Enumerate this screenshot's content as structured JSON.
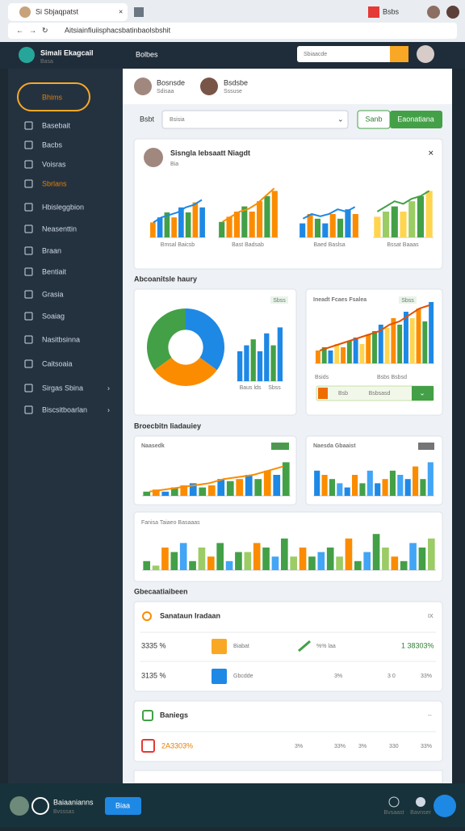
{
  "browser": {
    "tab_title": "Si Sbjaqpatst",
    "url": "Aitsiainfiuiisphacsbatinbaolsbshit",
    "ext": "Bsbs"
  },
  "header": {
    "brand": "Simali Ekagcail",
    "brand_sub": "Basa",
    "section": "Bolbes",
    "search": "Sbiaacde"
  },
  "sidebar": {
    "active": "Bhims",
    "items": [
      "Basebait",
      "Bacbs",
      "Voisras",
      "Sbrlans",
      "Hbisleggbion",
      "Neasenttin",
      "Braan",
      "Bentiait",
      "Grasia",
      "Soaiag",
      "Nasitbsinna",
      "Caitsoaia",
      "Sirgas Sbina",
      "Biscsitboarlan"
    ]
  },
  "profiles": [
    {
      "name": "Bosnsde",
      "role": "Sdisaa"
    },
    {
      "name": "Bsdsbe",
      "role": "Sssuse"
    }
  ],
  "filter": {
    "label": "Bsbt",
    "select": "Bsisia",
    "button1": "Sanb",
    "button2": "Eaonatiana"
  },
  "card1": {
    "title": "Sisngla Iebsaatt Niagdt",
    "subtitle": "Bia",
    "captions": [
      "Bmsal Baicsb",
      "Bast Badsab",
      "Baed Baslsa",
      "Bssat Baaas"
    ]
  },
  "section1": "Abcoanitsle haury",
  "donut_card": {
    "badge": "Sbss",
    "caption": "Baus lds",
    "caption2": "Sbss"
  },
  "right_card": {
    "title": "Ineadt Fcaes Fsalea",
    "badge": "Sbss",
    "label1": "Bsids",
    "label2": "Bsbs Bsbsd",
    "bar_left": "Bsb",
    "bar_mid": "Bsbsasd"
  },
  "section2": "Broecbitn Iiadauiey",
  "card_a": {
    "title": "Naasedk",
    "badge": "Bsbs"
  },
  "card_b": {
    "title": "Naesda Gbaaist",
    "badge": "Bsbs"
  },
  "card_c": {
    "title": "Fanisa Taiaeo Basaaas"
  },
  "section3": "Gbecaatiaibeen",
  "table1": {
    "title": "Sanataun Iradaan",
    "close": "IX",
    "rows": [
      [
        "3335 %",
        "Biabat",
        "%% laa",
        "1 38303%"
      ],
      [
        "3135 %",
        "Gbcdde",
        "3%",
        "3 0",
        "33%"
      ]
    ]
  },
  "table2": {
    "title": "Baniegs",
    "close": "--",
    "rows": [
      [
        "2A3303%",
        "3%",
        "33%",
        "3%",
        "330",
        "33%"
      ]
    ]
  },
  "footer": {
    "name": "Baiaanianns",
    "sub": "Bvsssas",
    "button": "Biaa",
    "icon1": "Bvsaast",
    "icon2": "Bavnser"
  },
  "charts": [
    {
      "type": "bar",
      "ylim": [
        0,
        10
      ],
      "values": [
        3,
        4,
        5,
        4,
        6,
        5,
        7,
        6
      ],
      "line": [
        3,
        4,
        4.5,
        5,
        6,
        6.5,
        7.5
      ],
      "colors": [
        "#fb8c00",
        "#1e88e5",
        "#43a047"
      ],
      "line_color": "#1e88e5"
    },
    {
      "type": "bar",
      "ylim": [
        0,
        10
      ],
      "values": [
        3,
        4,
        5,
        6,
        5,
        7,
        8,
        9
      ],
      "line": [
        3,
        4,
        5,
        5.5,
        6.5,
        8,
        9.5
      ],
      "colors": [
        "#43a047",
        "#fb8c00",
        "#fb8c00"
      ],
      "line_color": "#fb8c00"
    },
    {
      "type": "bar",
      "ylim": [
        0,
        10
      ],
      "values": [
        3,
        5,
        4,
        3,
        5,
        4,
        6,
        5
      ],
      "line": [
        4,
        5,
        4.5,
        5,
        6,
        5.5,
        6.5
      ],
      "colors": [
        "#1e88e5",
        "#fb8c00",
        "#43a047"
      ],
      "line_color": "#1e88e5"
    },
    {
      "type": "bar",
      "ylim": [
        0,
        10
      ],
      "values": [
        4,
        5,
        6,
        5,
        7,
        8,
        9
      ],
      "line": [
        5,
        6,
        7,
        6.5,
        7.5,
        8,
        9
      ],
      "colors": [
        "#ffd54f",
        "#9ccc65",
        "#43a047"
      ],
      "line_color": "#43a047"
    },
    {
      "type": "pie",
      "values": [
        35,
        30,
        35
      ],
      "colors": [
        "#1e88e5",
        "#fb8c00",
        "#43a047"
      ]
    },
    {
      "type": "bar",
      "ylim": [
        0,
        10
      ],
      "values": [
        5,
        6,
        7,
        5,
        8,
        6,
        9
      ],
      "colors": [
        "#1e88e5",
        "#1e88e5",
        "#43a047"
      ]
    },
    {
      "type": "bar",
      "ylim": [
        0,
        10
      ],
      "values": [
        2,
        2.5,
        2,
        3,
        2.5,
        3.5,
        4,
        3,
        4.5,
        5,
        6,
        5.5,
        7,
        6,
        8,
        7,
        8.5,
        6.5,
        9.5
      ],
      "line": [
        2,
        2.5,
        3,
        3.5,
        4,
        4.5,
        5,
        6,
        6.5,
        7.5,
        8.5,
        9
      ],
      "colors": [
        "#fb8c00",
        "#43a047",
        "#1e88e5",
        "#ffd54f"
      ],
      "line_color": "#e65100"
    },
    {
      "type": "bar",
      "ylim": [
        0,
        10
      ],
      "values": [
        1,
        1.5,
        1,
        2,
        2.5,
        3,
        2,
        2.5,
        4,
        3.5,
        4,
        5,
        4,
        6,
        5,
        8
      ],
      "line": [
        1,
        1.5,
        2,
        2.5,
        3,
        4,
        4.5,
        5,
        6,
        7
      ],
      "colors": [
        "#43a047",
        "#fb8c00",
        "#1e88e5"
      ],
      "line_color": "#fb8c00"
    },
    {
      "type": "bar",
      "ylim": [
        0,
        10
      ],
      "values": [
        6,
        5,
        4,
        3,
        2,
        5,
        3,
        6,
        3,
        4,
        6,
        5,
        4,
        7,
        4,
        8
      ],
      "colors": [
        "#1e88e5",
        "#fb8c00",
        "#43a047",
        "#42a5f5"
      ]
    },
    {
      "type": "bar",
      "ylim": [
        0,
        10
      ],
      "values": [
        2,
        1,
        5,
        4,
        6,
        2,
        5,
        3,
        6,
        2,
        4,
        4,
        6,
        5,
        3,
        7,
        3,
        5,
        3,
        4,
        5,
        3,
        7,
        2,
        4,
        8,
        5,
        3,
        2,
        6,
        5,
        7
      ],
      "colors": [
        "#43a047",
        "#9ccc65",
        "#fb8c00",
        "#43a047",
        "#42a5f5"
      ]
    }
  ]
}
